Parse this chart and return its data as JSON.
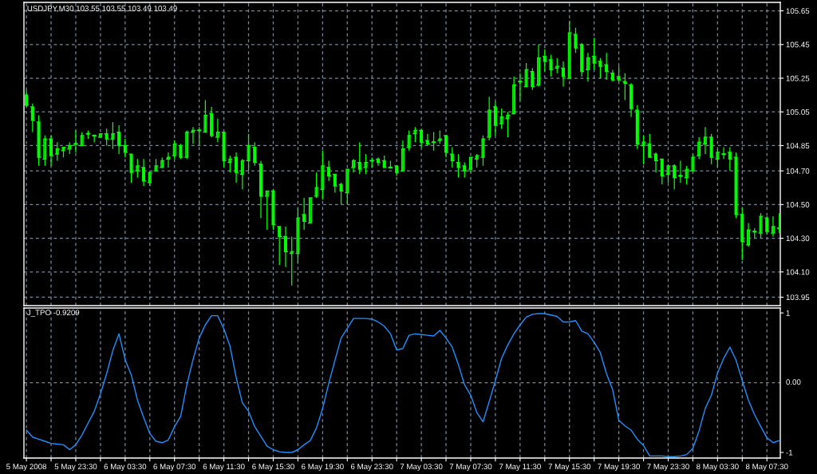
{
  "chart_data": [
    {
      "type": "candlestick",
      "title": "USDJPY,M30 103.55 103.55 103.49 103.49",
      "color": "#00ff00",
      "grid": true,
      "tick_labels": "y",
      "x": [
        "2008-05-05T19:30",
        "2008-05-05T20:00",
        "2008-05-05T20:30",
        "2008-05-05T21:00",
        "2008-05-05T21:30",
        "2008-05-05T22:00",
        "2008-05-05T22:30",
        "2008-05-05T23:00",
        "2008-05-05T23:30",
        "2008-05-06T00:00",
        "2008-05-06T00:30",
        "2008-05-06T01:00",
        "2008-05-06T01:30",
        "2008-05-06T02:00",
        "2008-05-06T02:30",
        "2008-05-06T03:00",
        "2008-05-06T03:30",
        "2008-05-06T04:00",
        "2008-05-06T04:30",
        "2008-05-06T05:00",
        "2008-05-06T05:30",
        "2008-05-06T06:00",
        "2008-05-06T06:30",
        "2008-05-06T07:00",
        "2008-05-06T07:30",
        "2008-05-06T08:00",
        "2008-05-06T08:30",
        "2008-05-06T09:00",
        "2008-05-06T09:30",
        "2008-05-06T10:00",
        "2008-05-06T10:30",
        "2008-05-06T11:00",
        "2008-05-06T11:30",
        "2008-05-06T12:00",
        "2008-05-06T12:30",
        "2008-05-06T13:00",
        "2008-05-06T13:30",
        "2008-05-06T14:00",
        "2008-05-06T14:30",
        "2008-05-06T15:00",
        "2008-05-06T15:30",
        "2008-05-06T16:00",
        "2008-05-06T16:30",
        "2008-05-06T17:00",
        "2008-05-06T17:30",
        "2008-05-06T18:00",
        "2008-05-06T18:30",
        "2008-05-06T19:00",
        "2008-05-06T19:30",
        "2008-05-06T20:00",
        "2008-05-06T20:30",
        "2008-05-06T21:00",
        "2008-05-06T21:30",
        "2008-05-06T22:00",
        "2008-05-06T22:30",
        "2008-05-06T23:00",
        "2008-05-06T23:30",
        "2008-05-07T00:00",
        "2008-05-07T00:30",
        "2008-05-07T01:00",
        "2008-05-07T01:30",
        "2008-05-07T02:00",
        "2008-05-07T02:30",
        "2008-05-07T03:00",
        "2008-05-07T03:30",
        "2008-05-07T04:00",
        "2008-05-07T04:30",
        "2008-05-07T05:00",
        "2008-05-07T05:30",
        "2008-05-07T06:00",
        "2008-05-07T06:30",
        "2008-05-07T07:00",
        "2008-05-07T07:30",
        "2008-05-07T08:00",
        "2008-05-07T08:30",
        "2008-05-07T09:00",
        "2008-05-07T09:30",
        "2008-05-07T10:00",
        "2008-05-07T10:30",
        "2008-05-07T11:00",
        "2008-05-07T11:30",
        "2008-05-07T12:00",
        "2008-05-07T12:30",
        "2008-05-07T13:00",
        "2008-05-07T13:30",
        "2008-05-07T14:00",
        "2008-05-07T14:30",
        "2008-05-07T15:00",
        "2008-05-07T15:30",
        "2008-05-07T16:00",
        "2008-05-07T16:30",
        "2008-05-07T17:00",
        "2008-05-07T17:30",
        "2008-05-07T18:00",
        "2008-05-07T18:30",
        "2008-05-07T19:00",
        "2008-05-07T19:30",
        "2008-05-07T20:00",
        "2008-05-07T20:30",
        "2008-05-07T21:00",
        "2008-05-07T21:30",
        "2008-05-07T22:00",
        "2008-05-07T22:30",
        "2008-05-07T23:00",
        "2008-05-07T23:30",
        "2008-05-08T00:00",
        "2008-05-08T00:30",
        "2008-05-08T01:00",
        "2008-05-08T01:30",
        "2008-05-08T02:00",
        "2008-05-08T02:30",
        "2008-05-08T03:00",
        "2008-05-08T03:30",
        "2008-05-08T04:00",
        "2008-05-08T04:30",
        "2008-05-08T05:00",
        "2008-05-08T05:30",
        "2008-05-08T06:00",
        "2008-05-08T06:30",
        "2008-05-08T07:00",
        "2008-05-08T07:30",
        "2008-05-08T08:00",
        "2008-05-08T08:30"
      ],
      "ohlc": [
        [
          105.15,
          105.18,
          105.08,
          105.09
        ],
        [
          105.08,
          105.1,
          104.93,
          105.0
        ],
        [
          104.99,
          105.03,
          104.73,
          104.78
        ],
        [
          104.77,
          104.91,
          104.73,
          104.89
        ],
        [
          104.89,
          104.91,
          104.73,
          104.79
        ],
        [
          104.8,
          104.87,
          104.76,
          104.83
        ],
        [
          104.82,
          104.84,
          104.78,
          104.84
        ],
        [
          104.83,
          104.87,
          104.8,
          104.85
        ],
        [
          104.86,
          104.94,
          104.81,
          104.86
        ],
        [
          104.85,
          104.93,
          104.85,
          104.91
        ],
        [
          104.92,
          104.94,
          104.89,
          104.92
        ],
        [
          104.91,
          104.91,
          104.87,
          104.91
        ],
        [
          104.9,
          104.92,
          104.9,
          104.92
        ],
        [
          104.92,
          104.95,
          104.85,
          104.89
        ],
        [
          104.89,
          104.99,
          104.83,
          104.92
        ],
        [
          104.93,
          104.97,
          104.8,
          104.85
        ],
        [
          104.85,
          104.89,
          104.78,
          104.81
        ],
        [
          104.8,
          104.8,
          104.63,
          104.69
        ],
        [
          104.7,
          104.77,
          104.66,
          104.73
        ],
        [
          104.72,
          104.77,
          104.61,
          104.64
        ],
        [
          104.63,
          104.69,
          104.61,
          104.69
        ],
        [
          104.7,
          104.77,
          104.7,
          104.73
        ],
        [
          104.72,
          104.78,
          104.72,
          104.76
        ],
        [
          104.77,
          104.81,
          104.72,
          104.78
        ],
        [
          104.79,
          104.88,
          104.77,
          104.86
        ],
        [
          104.85,
          104.86,
          104.77,
          104.78
        ],
        [
          104.78,
          104.94,
          104.77,
          104.93
        ],
        [
          104.93,
          104.96,
          104.86,
          104.94
        ],
        [
          104.94,
          104.96,
          104.85,
          104.94
        ],
        [
          104.93,
          105.12,
          104.93,
          105.03
        ],
        [
          105.04,
          105.08,
          104.9,
          104.91
        ],
        [
          104.9,
          105.01,
          104.87,
          104.93
        ],
        [
          104.93,
          104.93,
          104.72,
          104.76
        ],
        [
          104.75,
          104.79,
          104.69,
          104.77
        ],
        [
          104.78,
          104.81,
          104.63,
          104.69
        ],
        [
          104.68,
          104.77,
          104.59,
          104.76
        ],
        [
          104.76,
          104.92,
          104.7,
          104.85
        ],
        [
          104.84,
          104.87,
          104.73,
          104.75
        ],
        [
          104.74,
          104.76,
          104.42,
          104.55
        ],
        [
          104.55,
          104.58,
          104.35,
          104.58
        ],
        [
          104.58,
          104.59,
          104.35,
          104.38
        ],
        [
          104.37,
          104.37,
          104.14,
          104.31
        ],
        [
          104.31,
          104.37,
          104.13,
          104.22
        ],
        [
          104.21,
          104.31,
          104.02,
          104.22
        ],
        [
          104.21,
          104.48,
          104.15,
          104.42
        ],
        [
          104.44,
          104.54,
          104.35,
          104.4
        ],
        [
          104.39,
          104.54,
          104.39,
          104.54
        ],
        [
          104.55,
          104.69,
          104.54,
          104.6
        ],
        [
          104.59,
          104.82,
          104.53,
          104.73
        ],
        [
          104.72,
          104.76,
          104.64,
          104.67
        ],
        [
          104.68,
          104.68,
          104.57,
          104.61
        ],
        [
          104.62,
          104.63,
          104.5,
          104.58
        ],
        [
          104.57,
          104.71,
          104.5,
          104.71
        ],
        [
          104.72,
          104.77,
          104.69,
          104.76
        ],
        [
          104.75,
          104.87,
          104.68,
          104.71
        ],
        [
          104.72,
          104.8,
          104.68,
          104.75
        ],
        [
          104.76,
          104.78,
          104.72,
          104.76
        ],
        [
          104.77,
          104.78,
          104.73,
          104.75
        ],
        [
          104.76,
          104.79,
          104.72,
          104.72
        ],
        [
          104.72,
          104.76,
          104.72,
          104.72
        ],
        [
          104.73,
          104.73,
          104.67,
          104.69
        ],
        [
          104.7,
          104.88,
          104.7,
          104.83
        ],
        [
          104.84,
          104.94,
          104.82,
          104.91
        ],
        [
          104.92,
          104.96,
          104.87,
          104.94
        ],
        [
          104.94,
          104.95,
          104.84,
          104.87
        ],
        [
          104.88,
          104.92,
          104.85,
          104.86
        ],
        [
          104.87,
          104.93,
          104.82,
          104.87
        ],
        [
          104.88,
          104.94,
          104.86,
          104.89
        ],
        [
          104.91,
          104.91,
          104.78,
          104.81
        ],
        [
          104.8,
          104.84,
          104.72,
          104.76
        ],
        [
          104.75,
          104.8,
          104.66,
          104.72
        ],
        [
          104.73,
          104.75,
          104.66,
          104.7
        ],
        [
          104.71,
          104.78,
          104.69,
          104.78
        ],
        [
          104.77,
          104.8,
          104.72,
          104.79
        ],
        [
          104.78,
          104.91,
          104.73,
          104.89
        ],
        [
          104.9,
          105.14,
          104.88,
          105.06
        ],
        [
          105.08,
          105.11,
          104.91,
          104.97
        ],
        [
          104.98,
          105.07,
          104.95,
          105.02
        ],
        [
          105.01,
          105.05,
          104.9,
          105.03
        ],
        [
          105.04,
          105.26,
          105.04,
          105.21
        ],
        [
          105.23,
          105.28,
          105.12,
          105.23
        ],
        [
          105.2,
          105.34,
          105.2,
          105.3
        ],
        [
          105.29,
          105.31,
          105.18,
          105.2
        ],
        [
          105.21,
          105.45,
          105.2,
          105.37
        ],
        [
          105.38,
          105.42,
          105.29,
          105.35
        ],
        [
          105.36,
          105.39,
          105.26,
          105.3
        ],
        [
          105.31,
          105.37,
          105.28,
          105.32
        ],
        [
          105.31,
          105.35,
          105.2,
          105.26
        ],
        [
          105.25,
          105.59,
          105.25,
          105.52
        ],
        [
          105.51,
          105.55,
          105.4,
          105.43
        ],
        [
          105.45,
          105.46,
          105.26,
          105.29
        ],
        [
          105.3,
          105.4,
          105.23,
          105.37
        ],
        [
          105.38,
          105.49,
          105.3,
          105.34
        ],
        [
          105.35,
          105.37,
          105.25,
          105.32
        ],
        [
          105.33,
          105.4,
          105.24,
          105.29
        ],
        [
          105.28,
          105.3,
          105.23,
          105.24
        ],
        [
          105.26,
          105.32,
          105.23,
          105.24
        ],
        [
          105.23,
          105.28,
          105.12,
          105.22
        ],
        [
          105.21,
          105.22,
          105.02,
          105.07
        ],
        [
          105.06,
          105.09,
          104.83,
          104.86
        ],
        [
          104.85,
          104.91,
          104.74,
          104.87
        ],
        [
          104.86,
          104.92,
          104.78,
          104.78
        ],
        [
          104.8,
          104.81,
          104.69,
          104.76
        ],
        [
          104.77,
          104.77,
          104.62,
          104.67
        ],
        [
          104.68,
          104.74,
          104.63,
          104.73
        ],
        [
          104.73,
          104.74,
          104.59,
          104.66
        ],
        [
          104.67,
          104.76,
          104.63,
          104.67
        ],
        [
          104.66,
          104.73,
          104.62,
          104.71
        ],
        [
          104.7,
          104.8,
          104.7,
          104.78
        ],
        [
          104.79,
          104.9,
          104.77,
          104.87
        ],
        [
          104.86,
          104.96,
          104.8,
          104.9
        ],
        [
          104.9,
          104.92,
          104.74,
          104.78
        ],
        [
          104.77,
          104.83,
          104.72,
          104.81
        ],
        [
          104.8,
          104.84,
          104.77,
          104.8
        ],
        [
          104.81,
          104.84,
          104.7,
          104.77
        ],
        [
          104.78,
          104.81,
          104.42,
          104.44
        ],
        [
          104.44,
          104.48,
          104.17,
          104.28
        ],
        [
          104.26,
          104.39,
          104.25,
          104.35
        ],
        [
          104.34,
          104.36,
          104.3,
          104.34
        ],
        [
          104.33,
          104.45,
          104.3,
          104.43
        ],
        [
          104.42,
          104.43,
          104.32,
          104.34
        ],
        [
          104.33,
          104.43,
          104.31,
          104.37
        ],
        [
          104.36,
          104.45,
          104.33,
          104.36
        ]
      ],
      "xlim": [
        "2008-05-05T19:18",
        "2008-05-08T08:35"
      ],
      "xticks": [
        {
          "value": "2008-05-05T19:30",
          "label": null
        },
        {
          "value": "2008-05-05T21:30",
          "label": null
        },
        {
          "value": "2008-05-05T23:30",
          "label": null
        },
        {
          "value": "2008-05-06T01:30",
          "label": null
        },
        {
          "value": "2008-05-06T03:30",
          "label": null
        },
        {
          "value": "2008-05-06T05:30",
          "label": null
        },
        {
          "value": "2008-05-06T07:30",
          "label": null
        },
        {
          "value": "2008-05-06T09:30",
          "label": null
        },
        {
          "value": "2008-05-06T11:30",
          "label": null
        },
        {
          "value": "2008-05-06T13:30",
          "label": null
        },
        {
          "value": "2008-05-06T15:30",
          "label": null
        },
        {
          "value": "2008-05-06T17:30",
          "label": null
        },
        {
          "value": "2008-05-06T19:30",
          "label": null
        },
        {
          "value": "2008-05-06T21:30",
          "label": null
        },
        {
          "value": "2008-05-06T23:30",
          "label": null
        },
        {
          "value": "2008-05-07T01:30",
          "label": null
        },
        {
          "value": "2008-05-07T03:30",
          "label": null
        },
        {
          "value": "2008-05-07T05:30",
          "label": null
        },
        {
          "value": "2008-05-07T07:30",
          "label": null
        },
        {
          "value": "2008-05-07T09:30",
          "label": null
        },
        {
          "value": "2008-05-07T11:30",
          "label": null
        },
        {
          "value": "2008-05-07T13:30",
          "label": null
        },
        {
          "value": "2008-05-07T15:30",
          "label": null
        },
        {
          "value": "2008-05-07T17:30",
          "label": null
        },
        {
          "value": "2008-05-07T19:30",
          "label": null
        },
        {
          "value": "2008-05-07T21:30",
          "label": null
        },
        {
          "value": "2008-05-07T23:30",
          "label": null
        },
        {
          "value": "2008-05-08T01:30",
          "label": null
        },
        {
          "value": "2008-05-08T03:30",
          "label": null
        },
        {
          "value": "2008-05-08T05:30",
          "label": null
        },
        {
          "value": "2008-05-08T07:30",
          "label": null
        }
      ],
      "ylim": [
        103.9,
        105.7
      ],
      "yticks": [
        105.65,
        105.45,
        105.25,
        105.05,
        104.85,
        {
          "value": 104.7,
          "label": "104.70"
        },
        {
          "value": 104.5,
          "label": "104.50"
        },
        {
          "value": 104.3,
          "label": "104.30"
        },
        {
          "value": 104.1,
          "label": "104.10"
        },
        103.95
      ]
    },
    {
      "type": "line",
      "title": "J_TPO -0.9209",
      "color": "#1e90ff",
      "grid": "x",
      "x": [
        "2008-05-05T19:30",
        "2008-05-05T20:00",
        "2008-05-05T20:30",
        "2008-05-05T21:00",
        "2008-05-05T21:30",
        "2008-05-05T22:00",
        "2008-05-05T22:30",
        "2008-05-05T23:00",
        "2008-05-05T23:30",
        "2008-05-06T00:00",
        "2008-05-06T00:30",
        "2008-05-06T01:00",
        "2008-05-06T01:30",
        "2008-05-06T02:00",
        "2008-05-06T02:30",
        "2008-05-06T03:00",
        "2008-05-06T03:30",
        "2008-05-06T04:00",
        "2008-05-06T04:30",
        "2008-05-06T05:00",
        "2008-05-06T05:30",
        "2008-05-06T06:00",
        "2008-05-06T06:30",
        "2008-05-06T07:00",
        "2008-05-06T07:30",
        "2008-05-06T08:00",
        "2008-05-06T08:30",
        "2008-05-06T09:00",
        "2008-05-06T09:30",
        "2008-05-06T10:00",
        "2008-05-06T10:30",
        "2008-05-06T11:00",
        "2008-05-06T11:30",
        "2008-05-06T12:00",
        "2008-05-06T12:30",
        "2008-05-06T13:00",
        "2008-05-06T13:30",
        "2008-05-06T14:00",
        "2008-05-06T14:30",
        "2008-05-06T15:00",
        "2008-05-06T15:30",
        "2008-05-06T16:00",
        "2008-05-06T16:30",
        "2008-05-06T17:00",
        "2008-05-06T17:30",
        "2008-05-06T18:00",
        "2008-05-06T18:30",
        "2008-05-06T19:00",
        "2008-05-06T19:30",
        "2008-05-06T20:00",
        "2008-05-06T20:30",
        "2008-05-06T21:00",
        "2008-05-06T21:30",
        "2008-05-06T22:00",
        "2008-05-06T22:30",
        "2008-05-06T23:00",
        "2008-05-06T23:30",
        "2008-05-07T00:00",
        "2008-05-07T00:30",
        "2008-05-07T01:00",
        "2008-05-07T01:30",
        "2008-05-07T02:00",
        "2008-05-07T02:30",
        "2008-05-07T03:00",
        "2008-05-07T03:30",
        "2008-05-07T04:00",
        "2008-05-07T04:30",
        "2008-05-07T05:00",
        "2008-05-07T05:30",
        "2008-05-07T06:00",
        "2008-05-07T06:30",
        "2008-05-07T07:00",
        "2008-05-07T07:30",
        "2008-05-07T08:00",
        "2008-05-07T08:30",
        "2008-05-07T09:00",
        "2008-05-07T09:30",
        "2008-05-07T10:00",
        "2008-05-07T10:30",
        "2008-05-07T11:00",
        "2008-05-07T11:30",
        "2008-05-07T12:00",
        "2008-05-07T12:30",
        "2008-05-07T13:00",
        "2008-05-07T13:30",
        "2008-05-07T14:00",
        "2008-05-07T14:30",
        "2008-05-07T15:00",
        "2008-05-07T15:30",
        "2008-05-07T16:00",
        "2008-05-07T16:30",
        "2008-05-07T17:00",
        "2008-05-07T17:30",
        "2008-05-07T18:00",
        "2008-05-07T18:30",
        "2008-05-07T19:00",
        "2008-05-07T19:30",
        "2008-05-07T20:00",
        "2008-05-07T20:30",
        "2008-05-07T21:00",
        "2008-05-07T21:30",
        "2008-05-07T22:00",
        "2008-05-07T22:30",
        "2008-05-07T23:00",
        "2008-05-07T23:30",
        "2008-05-08T00:00",
        "2008-05-08T00:30",
        "2008-05-08T01:00",
        "2008-05-08T01:30",
        "2008-05-08T02:00",
        "2008-05-08T02:30",
        "2008-05-08T03:00",
        "2008-05-08T03:30",
        "2008-05-08T04:00",
        "2008-05-08T04:30",
        "2008-05-08T05:00",
        "2008-05-08T05:30",
        "2008-05-08T06:00",
        "2008-05-08T06:30",
        "2008-05-08T07:00",
        "2008-05-08T07:30",
        "2008-05-08T08:00",
        "2008-05-08T08:30"
      ],
      "values": [
        -0.68,
        -0.78,
        -0.81,
        -0.84,
        -0.87,
        -0.88,
        -0.89,
        -0.96,
        -0.89,
        -0.75,
        -0.58,
        -0.41,
        -0.16,
        0.13,
        0.46,
        0.7,
        0.33,
        0.11,
        -0.25,
        -0.5,
        -0.73,
        -0.84,
        -0.86,
        -0.82,
        -0.63,
        -0.48,
        -0.03,
        0.33,
        0.64,
        0.83,
        0.96,
        0.96,
        0.77,
        0.52,
        0.07,
        -0.29,
        -0.41,
        -0.63,
        -0.77,
        -0.91,
        -0.96,
        -0.99,
        -1.0,
        -1.0,
        -0.96,
        -0.89,
        -0.83,
        -0.65,
        -0.37,
        -0.01,
        0.32,
        0.64,
        0.78,
        0.92,
        0.92,
        0.92,
        0.91,
        0.87,
        0.81,
        0.7,
        0.47,
        0.49,
        0.68,
        0.7,
        0.69,
        0.68,
        0.67,
        0.75,
        0.64,
        0.51,
        0.26,
        -0.03,
        -0.18,
        -0.43,
        -0.56,
        -0.27,
        0.03,
        0.35,
        0.54,
        0.7,
        0.83,
        0.94,
        0.98,
        0.99,
        0.99,
        0.97,
        0.95,
        0.87,
        0.87,
        0.89,
        0.74,
        0.7,
        0.58,
        0.43,
        0.13,
        -0.1,
        -0.54,
        -0.62,
        -0.68,
        -0.81,
        -0.9,
        -1.05,
        -1.05,
        -1.05,
        -1.06,
        -1.06,
        -1.05,
        -1.03,
        -0.94,
        -0.69,
        -0.37,
        -0.18,
        0.14,
        0.35,
        0.51,
        0.32,
        0.03,
        -0.25,
        -0.46,
        -0.63,
        -0.79,
        -0.86,
        -0.83
      ],
      "xlim": [
        "2008-05-05T19:18",
        "2008-05-08T08:35"
      ],
      "xticks": [
        {
          "value": "2008-05-05T19:30",
          "label": "5 May 2008"
        },
        {
          "value": "2008-05-05T21:30",
          "label": null
        },
        {
          "value": "2008-05-05T23:30",
          "label": "5 May 23:30"
        },
        {
          "value": "2008-05-06T01:30",
          "label": null
        },
        {
          "value": "2008-05-06T03:30",
          "label": "6 May 03:30"
        },
        {
          "value": "2008-05-06T05:30",
          "label": null
        },
        {
          "value": "2008-05-06T07:30",
          "label": "6 May 07:30"
        },
        {
          "value": "2008-05-06T09:30",
          "label": null
        },
        {
          "value": "2008-05-06T11:30",
          "label": "6 May 11:30"
        },
        {
          "value": "2008-05-06T13:30",
          "label": null
        },
        {
          "value": "2008-05-06T15:30",
          "label": "6 May 15:30"
        },
        {
          "value": "2008-05-06T17:30",
          "label": null
        },
        {
          "value": "2008-05-06T19:30",
          "label": "6 May 19:30"
        },
        {
          "value": "2008-05-06T21:30",
          "label": null
        },
        {
          "value": "2008-05-06T23:30",
          "label": "6 May 23:30"
        },
        {
          "value": "2008-05-07T01:30",
          "label": null
        },
        {
          "value": "2008-05-07T03:30",
          "label": "7 May 03:30"
        },
        {
          "value": "2008-05-07T05:30",
          "label": null
        },
        {
          "value": "2008-05-07T07:30",
          "label": "7 May 07:30"
        },
        {
          "value": "2008-05-07T09:30",
          "label": null
        },
        {
          "value": "2008-05-07T11:30",
          "label": "7 May 11:30"
        },
        {
          "value": "2008-05-07T13:30",
          "label": null
        },
        {
          "value": "2008-05-07T15:30",
          "label": "7 May 15:30"
        },
        {
          "value": "2008-05-07T17:30",
          "label": null
        },
        {
          "value": "2008-05-07T19:30",
          "label": "7 May 19:30"
        },
        {
          "value": "2008-05-07T21:30",
          "label": null
        },
        {
          "value": "2008-05-07T23:30",
          "label": "7 May 23:30"
        },
        {
          "value": "2008-05-08T01:30",
          "label": null
        },
        {
          "value": "2008-05-08T03:30",
          "label": "8 May 03:30"
        },
        {
          "value": "2008-05-08T05:30",
          "label": null
        },
        {
          "value": "2008-05-08T07:30",
          "label": "8 May 07:30"
        }
      ],
      "ylim": [
        -1.08,
        1.07
      ],
      "yticks": [
        1,
        -1
      ],
      "ref_lines": [
        {
          "axis": "y",
          "value": 0,
          "label": "0.00",
          "color": "#778899",
          "line_style": "dashed"
        }
      ]
    }
  ]
}
